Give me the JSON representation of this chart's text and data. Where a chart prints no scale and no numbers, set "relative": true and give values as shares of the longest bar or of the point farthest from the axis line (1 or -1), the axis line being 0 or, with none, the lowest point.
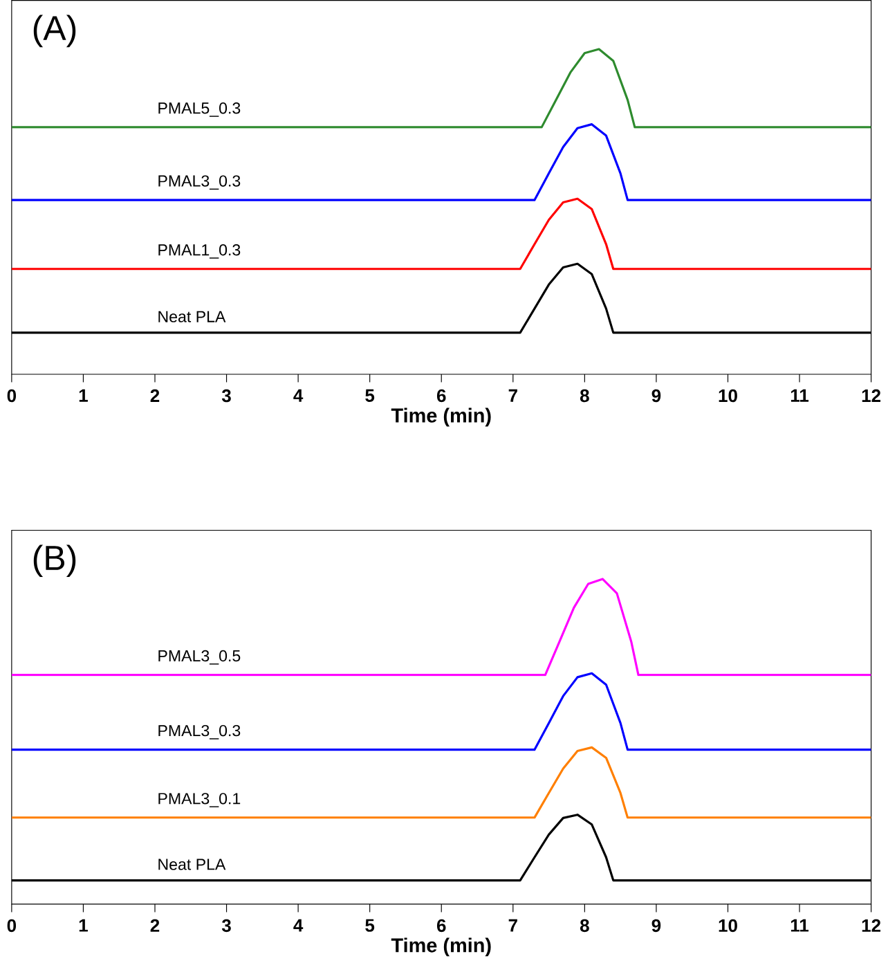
{
  "chart_data": [
    {
      "type": "line",
      "relative": true,
      "xlabel": "Time (min)",
      "xlim": [
        0,
        12
      ],
      "xticks": [
        0,
        1,
        2,
        3,
        4,
        5,
        6,
        7,
        8,
        9,
        10,
        11,
        12
      ],
      "tick_labels": "x",
      "annotations": [
        "(A)"
      ],
      "series": [
        {
          "name": "PMAL5_0.3",
          "color": "#2e8b2e",
          "x": [
            0,
            7.4,
            7.6,
            7.8,
            8.0,
            8.2,
            8.4,
            8.6,
            8.7,
            12
          ],
          "values": [
            0.76,
            0.76,
            0.844,
            0.928,
            0.988,
            1,
            0.964,
            0.844,
            0.76,
            0.76
          ]
        },
        {
          "name": "PMAL3_0.3",
          "color": "#0000ff",
          "x": [
            0,
            7.3,
            7.5,
            7.7,
            7.9,
            8.1,
            8.3,
            8.5,
            8.6,
            12
          ],
          "values": [
            0.536,
            0.536,
            0.618,
            0.699,
            0.757,
            0.769,
            0.734,
            0.618,
            0.536,
            0.536
          ]
        },
        {
          "name": "PMAL1_0.3",
          "color": "#ff0000",
          "x": [
            0,
            7.1,
            7.3,
            7.5,
            7.7,
            7.9,
            8.1,
            8.3,
            8.4,
            12
          ],
          "values": [
            0.324,
            0.324,
            0.4,
            0.475,
            0.529,
            0.54,
            0.508,
            0.4,
            0.324,
            0.324
          ]
        },
        {
          "name": "Neat PLA",
          "color": "#000000",
          "x": [
            0,
            7.1,
            7.3,
            7.5,
            7.7,
            7.9,
            8.1,
            8.3,
            8.4,
            12
          ],
          "values": [
            0.128,
            0.128,
            0.202,
            0.276,
            0.329,
            0.34,
            0.308,
            0.202,
            0.128,
            0.128
          ]
        }
      ]
    },
    {
      "type": "line",
      "relative": true,
      "xlabel": "Time (min)",
      "xlim": [
        0,
        12
      ],
      "xticks": [
        0,
        1,
        2,
        3,
        4,
        5,
        6,
        7,
        8,
        9,
        10,
        11,
        12
      ],
      "tick_labels": "x",
      "annotations": [
        "(B)"
      ],
      "series": [
        {
          "name": "PMAL3_0.5",
          "color": "#ff00ff",
          "x": [
            0,
            7.45,
            7.65,
            7.85,
            8.05,
            8.25,
            8.45,
            8.65,
            8.75,
            12
          ],
          "values": [
            0.705,
            0.705,
            0.808,
            0.912,
            0.985,
            1,
            0.956,
            0.808,
            0.705,
            0.705
          ]
        },
        {
          "name": "PMAL3_0.3",
          "color": "#0000ff",
          "x": [
            0,
            7.3,
            7.5,
            7.7,
            7.9,
            8.1,
            8.3,
            8.5,
            8.6,
            12
          ],
          "values": [
            0.475,
            0.475,
            0.557,
            0.64,
            0.698,
            0.71,
            0.675,
            0.557,
            0.475,
            0.475
          ]
        },
        {
          "name": "PMAL3_0.1",
          "color": "#ff7f00",
          "x": [
            0,
            7.3,
            7.5,
            7.7,
            7.9,
            8.1,
            8.3,
            8.5,
            8.6,
            12
          ],
          "values": [
            0.266,
            0.266,
            0.342,
            0.417,
            0.471,
            0.482,
            0.45,
            0.342,
            0.266,
            0.266
          ]
        },
        {
          "name": "Neat PLA",
          "color": "#000000",
          "x": [
            0,
            7.1,
            7.3,
            7.5,
            7.7,
            7.9,
            8.1,
            8.3,
            8.4,
            12
          ],
          "values": [
            0.073,
            0.073,
            0.144,
            0.214,
            0.265,
            0.275,
            0.245,
            0.144,
            0.073,
            0.073
          ]
        }
      ]
    }
  ]
}
